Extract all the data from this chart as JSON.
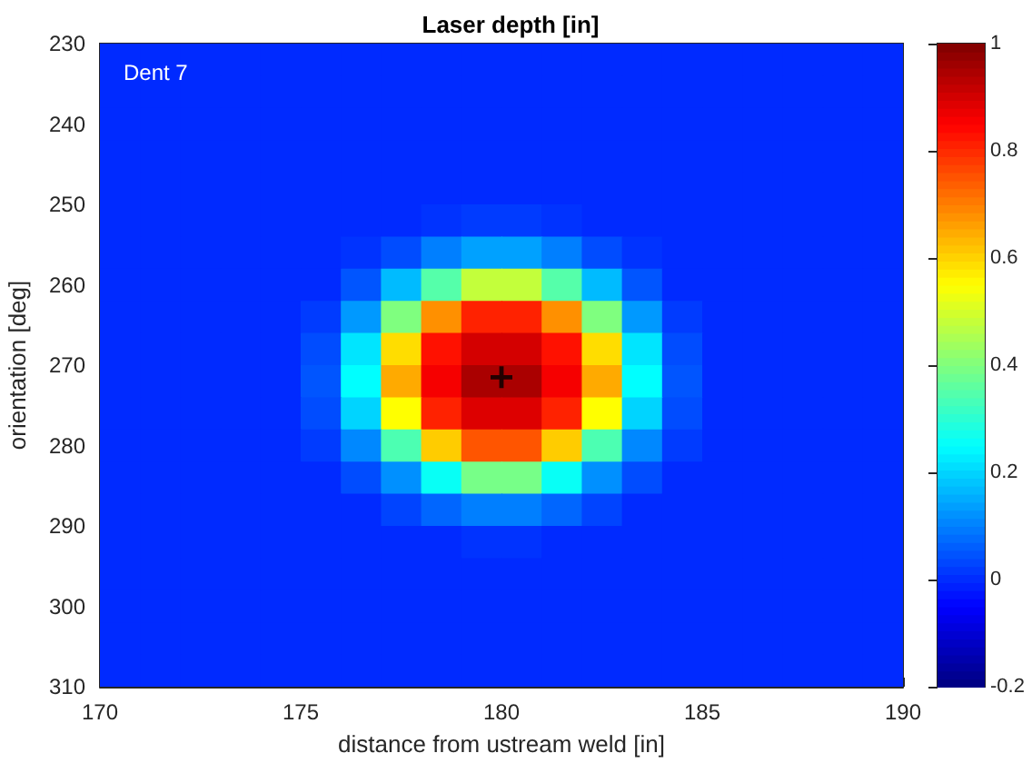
{
  "chart_data": {
    "type": "heatmap",
    "title": "Laser depth [in]",
    "xlabel": "distance from ustream weld [in]",
    "ylabel": "orientation [deg]",
    "annotations": [
      "Dent 7"
    ],
    "xlim": [
      170,
      190
    ],
    "xticks": [
      170,
      175,
      180,
      185,
      190
    ],
    "ylim": [
      310,
      230
    ],
    "yticks": [
      230,
      240,
      250,
      260,
      270,
      280,
      290,
      300,
      310
    ],
    "clim": [
      -0.2,
      1
    ],
    "cticks": [
      -0.2,
      0,
      0.2,
      0.4,
      0.6,
      0.8,
      1
    ],
    "marker": "cross",
    "series": [
      {
        "type": "scatter",
        "x": [
          180
        ],
        "values": [
          271.5
        ],
        "color": "#000000"
      }
    ],
    "cells": [
      [
        0,
        0,
        0,
        0,
        0,
        0,
        0,
        0,
        0,
        0,
        0,
        0,
        0,
        0,
        0,
        0,
        0,
        0,
        0,
        0
      ],
      [
        0,
        0,
        0,
        0,
        0,
        0,
        0,
        0,
        0,
        0,
        0,
        0,
        0,
        0,
        0,
        0,
        0,
        0,
        0,
        0
      ],
      [
        0,
        0,
        0,
        0,
        0,
        0,
        0,
        0,
        0,
        0,
        0,
        0,
        0,
        0,
        0,
        0,
        0,
        0,
        0,
        0
      ],
      [
        0,
        0,
        0,
        0,
        0,
        0,
        0,
        0,
        0,
        0,
        0,
        0,
        0,
        0,
        0,
        0,
        0,
        0,
        0,
        0
      ],
      [
        0,
        0,
        0,
        0,
        0,
        0,
        0,
        0,
        0,
        0,
        0,
        0,
        0,
        0,
        0,
        0,
        0,
        0,
        0,
        0
      ],
      [
        0,
        0,
        0,
        0,
        0,
        0,
        0,
        0,
        0.01,
        0.02,
        0.02,
        0.01,
        0,
        0,
        0,
        0,
        0,
        0,
        0,
        0
      ],
      [
        0,
        0,
        0,
        0,
        0,
        0,
        0.01,
        0.04,
        0.1,
        0.14,
        0.14,
        0.1,
        0.04,
        0.01,
        0,
        0,
        0,
        0,
        0,
        0
      ],
      [
        0,
        0,
        0,
        0,
        0,
        0,
        0.05,
        0.17,
        0.35,
        0.48,
        0.48,
        0.35,
        0.17,
        0.05,
        0,
        0,
        0,
        0,
        0,
        0
      ],
      [
        0,
        0,
        0,
        0,
        0,
        0.02,
        0.13,
        0.4,
        0.68,
        0.81,
        0.81,
        0.68,
        0.4,
        0.13,
        0.02,
        0,
        0,
        0,
        0,
        0
      ],
      [
        0,
        0,
        0,
        0,
        0,
        0.04,
        0.22,
        0.59,
        0.83,
        0.9,
        0.9,
        0.83,
        0.59,
        0.22,
        0.04,
        0,
        0,
        0,
        0,
        0
      ],
      [
        0,
        0,
        0,
        0,
        0,
        0.05,
        0.25,
        0.65,
        0.86,
        0.95,
        0.95,
        0.86,
        0.65,
        0.25,
        0.05,
        0,
        0,
        0,
        0,
        0
      ],
      [
        0,
        0,
        0,
        0,
        0,
        0.04,
        0.2,
        0.55,
        0.81,
        0.89,
        0.89,
        0.81,
        0.55,
        0.2,
        0.04,
        0,
        0,
        0,
        0,
        0
      ],
      [
        0,
        0,
        0,
        0,
        0,
        0.02,
        0.11,
        0.34,
        0.61,
        0.75,
        0.75,
        0.61,
        0.34,
        0.11,
        0.02,
        0,
        0,
        0,
        0,
        0
      ],
      [
        0,
        0,
        0,
        0,
        0,
        0,
        0.04,
        0.12,
        0.26,
        0.39,
        0.39,
        0.26,
        0.12,
        0.04,
        0,
        0,
        0,
        0,
        0,
        0
      ],
      [
        0,
        0,
        0,
        0,
        0,
        0,
        0,
        0.03,
        0.07,
        0.1,
        0.1,
        0.07,
        0.03,
        0,
        0,
        0,
        0,
        0,
        0,
        0
      ],
      [
        0,
        0,
        0,
        0,
        0,
        0,
        0,
        0,
        0,
        0.01,
        0.01,
        0,
        0,
        0,
        0,
        0,
        0,
        0,
        0,
        0
      ],
      [
        0,
        0,
        0,
        0,
        0,
        0,
        0,
        0,
        0,
        0,
        0,
        0,
        0,
        0,
        0,
        0,
        0,
        0,
        0,
        0
      ],
      [
        0,
        0,
        0,
        0,
        0,
        0,
        0,
        0,
        0,
        0,
        0,
        0,
        0,
        0,
        0,
        0,
        0,
        0,
        0,
        0
      ],
      [
        0,
        0,
        0,
        0,
        0,
        0,
        0,
        0,
        0,
        0,
        0,
        0,
        0,
        0,
        0,
        0,
        0,
        0,
        0,
        0
      ],
      [
        0,
        0,
        0,
        0,
        0,
        0,
        0,
        0,
        0,
        0,
        0,
        0,
        0,
        0,
        0,
        0,
        0,
        0,
        0,
        0
      ]
    ]
  }
}
